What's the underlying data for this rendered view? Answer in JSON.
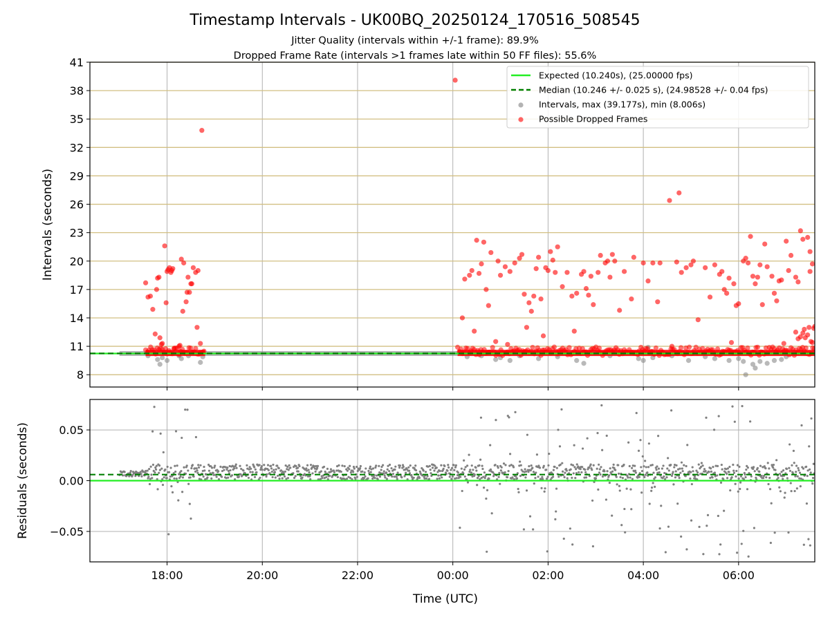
{
  "chart_data": [
    {
      "type": "scatter",
      "title": "Timestamp Intervals - UK00BQ_20250124_170516_508545",
      "subtitle_1": "Jitter Quality (intervals within +/-1 frame): 89.9%",
      "subtitle_2": "Dropped Frame Rate (intervals >1 frames late within 50 FF files): 55.6%",
      "xlabel": "",
      "ylabel": "Intervals (seconds)",
      "x_axis": "time (hours since 00:00 UTC of 2025-01-24)",
      "xlim": [
        16.38,
        31.6
      ],
      "ylim": [
        6.7,
        41
      ],
      "yticks": [
        8,
        11,
        14,
        17,
        20,
        23,
        26,
        29,
        32,
        35,
        38,
        41
      ],
      "xtick_labels": [
        "18:00",
        "20:00",
        "22:00",
        "00:00",
        "02:00",
        "04:00",
        "06:00"
      ],
      "grid": "horizontal lines at y ticks (tan) plus vertical lines at x ticks",
      "legend_placement": "top-right",
      "legend": [
        "Expected (10.240s), (25.00000 fps)",
        "Median (10.246 +/- 0.025 s), (24.98528 +/- 0.04 fps)",
        "Intervals, max (39.177s), min (8.006s)",
        "Possible Dropped Frames"
      ],
      "series": [
        {
          "name": "Expected (10.240s), (25.00000 fps)",
          "kind": "hline",
          "y": 10.24,
          "color": "#22ee22"
        },
        {
          "name": "Median (10.246 +/- 0.025 s), (24.98528 +/- 0.04 fps)",
          "kind": "hline-dashed",
          "y": 10.246,
          "color": "#007f00"
        },
        {
          "name": "Intervals, max (39.177s), min (8.006s)",
          "kind": "scatter",
          "color": "#808080",
          "baseline_band": {
            "x_range": [
              17.0,
              31.6
            ],
            "y": 10.24
          },
          "points": [
            [
              17.6,
              10.0
            ],
            [
              17.8,
              9.6
            ],
            [
              17.85,
              9.1
            ],
            [
              17.9,
              9.8
            ],
            [
              18.0,
              9.5
            ],
            [
              18.25,
              10.0
            ],
            [
              18.3,
              9.7
            ],
            [
              18.45,
              10.0
            ],
            [
              18.7,
              9.3
            ],
            [
              18.75,
              9.9
            ],
            [
              24.3,
              9.9
            ],
            [
              24.6,
              10.0
            ],
            [
              24.9,
              9.6
            ],
            [
              25.0,
              9.8
            ],
            [
              25.2,
              9.5
            ],
            [
              25.4,
              10.0
            ],
            [
              25.8,
              9.7
            ],
            [
              26.2,
              9.9
            ],
            [
              26.6,
              9.5
            ],
            [
              26.75,
              9.2
            ],
            [
              27.3,
              10.0
            ],
            [
              27.9,
              9.7
            ],
            [
              28.0,
              9.5
            ],
            [
              28.1,
              10.9
            ],
            [
              28.2,
              9.8
            ],
            [
              28.6,
              10.0
            ],
            [
              28.95,
              9.5
            ],
            [
              29.3,
              9.9
            ],
            [
              29.5,
              9.7
            ],
            [
              29.8,
              9.5
            ],
            [
              30.0,
              9.7
            ],
            [
              30.1,
              9.4
            ],
            [
              30.15,
              8.0
            ],
            [
              30.3,
              9.1
            ],
            [
              30.35,
              8.7
            ],
            [
              30.45,
              9.4
            ],
            [
              30.6,
              9.2
            ],
            [
              30.75,
              9.5
            ],
            [
              30.9,
              9.6
            ],
            [
              31.0,
              9.9
            ]
          ]
        },
        {
          "name": "Possible Dropped Frames",
          "kind": "scatter",
          "color": "#ff0000",
          "dense_band": {
            "x_ranges": [
              [
                17.55,
                18.8
              ],
              [
                24.1,
                31.6
              ]
            ],
            "y": 10.3
          },
          "points": [
            [
              17.55,
              17.7
            ],
            [
              17.6,
              16.2
            ],
            [
              17.65,
              16.3
            ],
            [
              17.7,
              14.9
            ],
            [
              17.75,
              12.3
            ],
            [
              17.78,
              17.0
            ],
            [
              17.8,
              18.2
            ],
            [
              17.83,
              18.3
            ],
            [
              17.85,
              11.9
            ],
            [
              17.88,
              11.2
            ],
            [
              17.9,
              11.3
            ],
            [
              17.95,
              21.6
            ],
            [
              17.98,
              15.6
            ],
            [
              18.0,
              18.9
            ],
            [
              18.02,
              19.1
            ],
            [
              18.05,
              19.3
            ],
            [
              18.08,
              18.8
            ],
            [
              18.1,
              19.0
            ],
            [
              18.12,
              19.2
            ],
            [
              18.15,
              10.8
            ],
            [
              18.25,
              11.0
            ],
            [
              18.27,
              11.1
            ],
            [
              18.3,
              20.2
            ],
            [
              18.33,
              14.7
            ],
            [
              18.35,
              19.8
            ],
            [
              18.4,
              15.7
            ],
            [
              18.42,
              16.7
            ],
            [
              18.44,
              18.3
            ],
            [
              18.47,
              16.7
            ],
            [
              18.5,
              17.6
            ],
            [
              18.52,
              17.6
            ],
            [
              18.55,
              19.3
            ],
            [
              18.6,
              18.8
            ],
            [
              18.63,
              13.0
            ],
            [
              18.65,
              19.0
            ],
            [
              18.7,
              11.3
            ],
            [
              18.73,
              33.8
            ],
            [
              24.05,
              39.1
            ],
            [
              24.2,
              14.0
            ],
            [
              24.25,
              18.1
            ],
            [
              24.35,
              18.5
            ],
            [
              24.4,
              19.0
            ],
            [
              24.45,
              12.6
            ],
            [
              24.5,
              22.2
            ],
            [
              24.55,
              18.7
            ],
            [
              24.6,
              19.7
            ],
            [
              24.65,
              22.0
            ],
            [
              24.7,
              17.0
            ],
            [
              24.75,
              15.3
            ],
            [
              24.8,
              20.9
            ],
            [
              24.9,
              11.5
            ],
            [
              24.95,
              20.0
            ],
            [
              25.0,
              18.5
            ],
            [
              25.1,
              19.4
            ],
            [
              25.15,
              11.2
            ],
            [
              25.2,
              18.9
            ],
            [
              25.3,
              19.8
            ],
            [
              25.4,
              20.3
            ],
            [
              25.45,
              20.7
            ],
            [
              25.5,
              16.5
            ],
            [
              25.55,
              13.0
            ],
            [
              25.6,
              15.6
            ],
            [
              25.65,
              14.7
            ],
            [
              25.7,
              16.3
            ],
            [
              25.75,
              19.2
            ],
            [
              25.8,
              20.4
            ],
            [
              25.85,
              16.0
            ],
            [
              25.9,
              12.1
            ],
            [
              25.95,
              19.3
            ],
            [
              26.0,
              19.0
            ],
            [
              26.05,
              21.0
            ],
            [
              26.1,
              20.1
            ],
            [
              26.15,
              18.8
            ],
            [
              26.2,
              21.5
            ],
            [
              26.3,
              17.3
            ],
            [
              26.4,
              18.8
            ],
            [
              26.5,
              16.3
            ],
            [
              26.55,
              12.6
            ],
            [
              26.6,
              16.6
            ],
            [
              26.7,
              18.6
            ],
            [
              26.75,
              18.9
            ],
            [
              26.8,
              17.1
            ],
            [
              26.85,
              16.4
            ],
            [
              26.9,
              18.4
            ],
            [
              26.95,
              15.4
            ],
            [
              27.05,
              18.8
            ],
            [
              27.1,
              20.6
            ],
            [
              27.2,
              19.8
            ],
            [
              27.25,
              20.0
            ],
            [
              27.3,
              18.3
            ],
            [
              27.35,
              20.7
            ],
            [
              27.4,
              20.0
            ],
            [
              27.5,
              14.8
            ],
            [
              27.6,
              18.9
            ],
            [
              27.75,
              16.0
            ],
            [
              27.8,
              20.4
            ],
            [
              28.0,
              19.8
            ],
            [
              28.1,
              17.9
            ],
            [
              28.2,
              19.8
            ],
            [
              28.3,
              15.7
            ],
            [
              28.35,
              19.8
            ],
            [
              28.55,
              26.4
            ],
            [
              28.6,
              11.0
            ],
            [
              28.7,
              19.9
            ],
            [
              28.75,
              27.2
            ],
            [
              28.8,
              18.8
            ],
            [
              28.9,
              19.3
            ],
            [
              29.0,
              19.6
            ],
            [
              29.05,
              20.0
            ],
            [
              29.15,
              13.8
            ],
            [
              29.3,
              19.3
            ],
            [
              29.4,
              16.2
            ],
            [
              29.5,
              19.6
            ],
            [
              29.6,
              18.6
            ],
            [
              29.65,
              18.9
            ],
            [
              29.7,
              17.0
            ],
            [
              29.75,
              16.6
            ],
            [
              29.8,
              18.2
            ],
            [
              29.85,
              11.4
            ],
            [
              29.9,
              17.6
            ],
            [
              29.95,
              15.3
            ],
            [
              30.0,
              15.5
            ],
            [
              30.1,
              20.0
            ],
            [
              30.15,
              20.3
            ],
            [
              30.2,
              19.8
            ],
            [
              30.25,
              22.6
            ],
            [
              30.3,
              18.4
            ],
            [
              30.35,
              17.6
            ],
            [
              30.4,
              18.3
            ],
            [
              30.45,
              19.6
            ],
            [
              30.5,
              15.4
            ],
            [
              30.55,
              21.8
            ],
            [
              30.6,
              19.4
            ],
            [
              30.7,
              18.4
            ],
            [
              30.75,
              16.6
            ],
            [
              30.8,
              15.8
            ],
            [
              30.85,
              17.9
            ],
            [
              30.9,
              18.0
            ],
            [
              30.95,
              11.3
            ],
            [
              31.0,
              22.1
            ],
            [
              31.05,
              19.0
            ],
            [
              31.1,
              20.6
            ],
            [
              31.2,
              18.3
            ],
            [
              31.25,
              17.8
            ],
            [
              31.3,
              23.2
            ],
            [
              31.35,
              22.3
            ],
            [
              31.4,
              11.9
            ],
            [
              31.45,
              22.5
            ],
            [
              31.5,
              21.0
            ],
            [
              31.55,
              11.4
            ],
            [
              31.2,
              12.5
            ],
            [
              31.25,
              11.8
            ],
            [
              31.3,
              12.0
            ],
            [
              31.35,
              12.4
            ],
            [
              31.38,
              12.8
            ],
            [
              31.45,
              12.2
            ],
            [
              31.48,
              13.0
            ],
            [
              31.52,
              11.5
            ],
            [
              31.58,
              12.9
            ],
            [
              31.55,
              19.7
            ],
            [
              31.5,
              18.9
            ],
            [
              31.6,
              13.1
            ]
          ]
        }
      ]
    },
    {
      "type": "scatter",
      "title": "",
      "xlabel": "Time (UTC)",
      "ylabel": "Residuals (seconds)",
      "x_axis": "time (hours since 00:00 UTC of 2025-01-24)",
      "xlim": [
        16.38,
        31.6
      ],
      "ylim": [
        -0.08,
        0.08
      ],
      "ytick_labels": [
        "0.05",
        "0.00",
        "−0.05"
      ],
      "yticks": [
        0.05,
        0.0,
        -0.05
      ],
      "xtick_labels": [
        "18:00",
        "20:00",
        "22:00",
        "00:00",
        "02:00",
        "04:00",
        "06:00"
      ],
      "grid": "horizontal and vertical at ticks",
      "series": [
        {
          "kind": "hline",
          "y": 0.0,
          "color": "#22ee22"
        },
        {
          "kind": "hline-dashed",
          "y": 0.006,
          "color": "#007f00"
        },
        {
          "kind": "scatter",
          "color": "#808080",
          "bands": [
            {
              "x_range": [
                17.0,
                17.6
              ],
              "y_range": [
                0.004,
                0.01
              ]
            },
            {
              "x_range": [
                17.6,
                18.8
              ],
              "y_range": [
                -0.06,
                0.075
              ]
            },
            {
              "x_range": [
                18.8,
                24.1
              ],
              "y_range": [
                0.001,
                0.016
              ]
            },
            {
              "x_range": [
                24.1,
                31.6
              ],
              "y_range": [
                -0.075,
                0.075
              ]
            }
          ]
        }
      ]
    }
  ],
  "legend_colors": {
    "expected": "#22ee22",
    "median": "#007f00",
    "intervals": "#808080",
    "dropped": "#ff0000"
  }
}
